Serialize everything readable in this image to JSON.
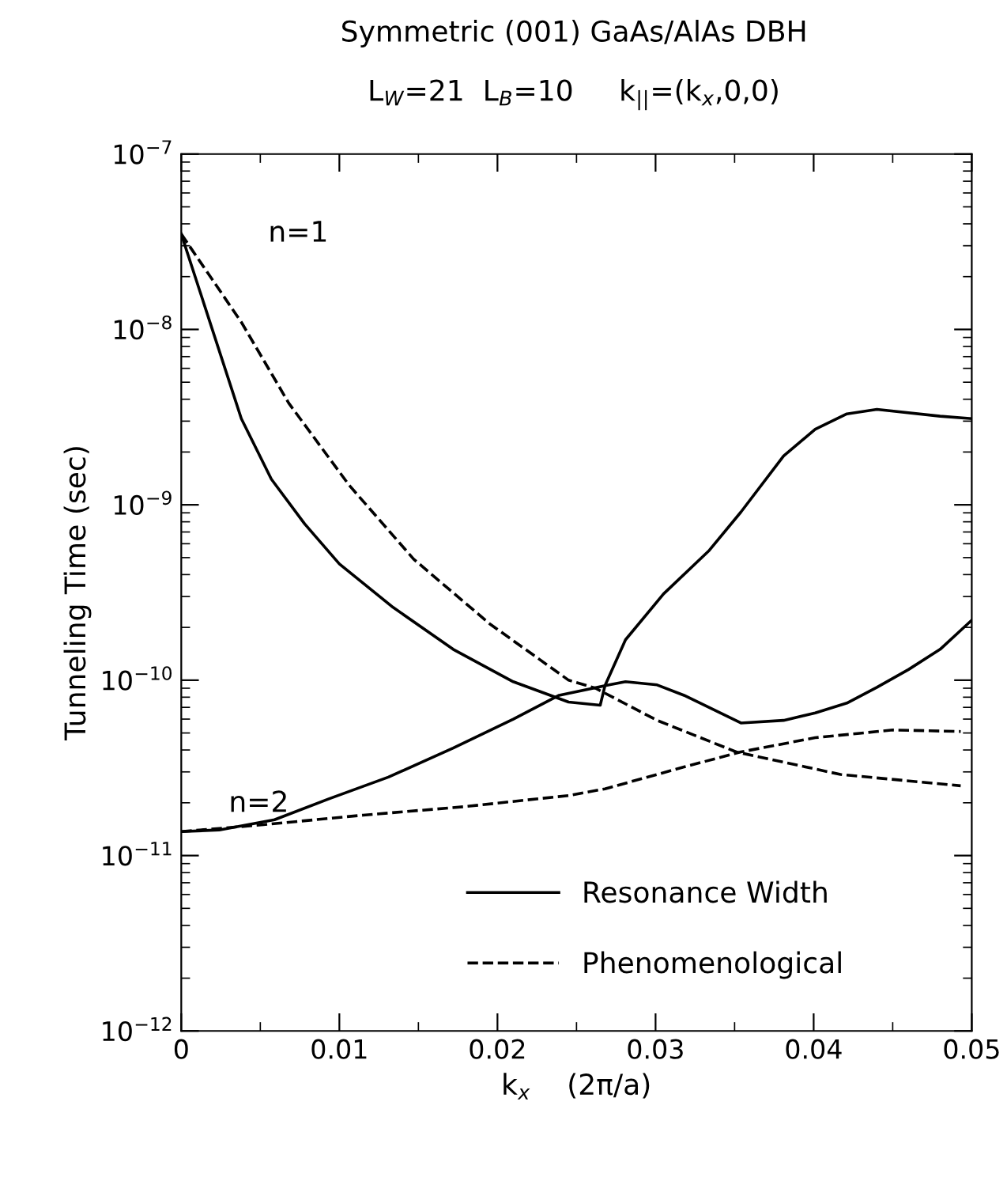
{
  "chart_data": {
    "type": "line",
    "title": "Symmetric (001) GaAs/AlAs DBH",
    "subtitle": "L$_{W}$=21  L$_{B}$=10     k$_{||}$=(k$_{x}$,0,0)",
    "xlabel": "k$_{x}$    (2π/a)",
    "ylabel": "Tunneling Time (sec)",
    "log": "y",
    "xlim": [
      0,
      0.05
    ],
    "ylim": [
      1e-12,
      1e-07
    ],
    "xticks": [
      0,
      0.01,
      0.02,
      0.03,
      0.04,
      0.05
    ],
    "yticks": [
      {
        "value": 1e-12,
        "label": "10$^{−12}$"
      },
      {
        "value": 1e-11,
        "label": "10$^{−11}$"
      },
      {
        "value": 1e-10,
        "label": "10$^{−10}$"
      },
      {
        "value": 1e-09,
        "label": "10$^{−9}$"
      },
      {
        "value": 1e-08,
        "label": "10$^{−8}$"
      },
      {
        "value": 1e-07,
        "label": "10$^{−7}$"
      }
    ],
    "grid": false,
    "legend": "bottom",
    "marker": "none",
    "annotations": [
      "n=1",
      "n=2"
    ],
    "series": [
      {
        "name": "Resonance Width",
        "color": "#000000",
        "line_style": "solid",
        "x": [
          0,
          0.0038,
          0.0057,
          0.0078,
          0.01,
          0.0134,
          0.0172,
          0.021,
          0.0245,
          0.0265,
          0.0268,
          0.0281,
          0.0305,
          0.0334,
          0.0354,
          0.0381,
          0.0401,
          0.0421,
          0.044,
          0.048,
          0.05
        ],
        "values": [
          3.5e-08,
          3.1e-09,
          1.4e-09,
          7.8e-10,
          4.6e-10,
          2.6e-10,
          1.5e-10,
          9.8e-11,
          7.5e-11,
          7.2e-11,
          9.3e-11,
          1.7e-10,
          3.1e-10,
          5.5e-10,
          9.1e-10,
          1.9e-09,
          2.7e-09,
          3.3e-09,
          3.5e-09,
          3.2e-09,
          3.1e-09
        ]
      },
      {
        "color": "#000000",
        "line_style": "solid",
        "x": [
          0,
          0.0024,
          0.0059,
          0.0093,
          0.0131,
          0.0172,
          0.021,
          0.0239,
          0.0268,
          0.0281,
          0.0301,
          0.0318,
          0.0354,
          0.0381,
          0.0401,
          0.0421,
          0.044,
          0.046,
          0.048,
          0.05
        ],
        "values": [
          1.37e-11,
          1.4e-11,
          1.6e-11,
          2.1e-11,
          2.8e-11,
          4.1e-11,
          6e-11,
          8.2e-11,
          9.3e-11,
          9.8e-11,
          9.4e-11,
          8.2e-11,
          5.7e-11,
          5.9e-11,
          6.5e-11,
          7.4e-11,
          9.1e-11,
          1.15e-10,
          1.5e-10,
          2.2e-10
        ]
      },
      {
        "name": "Phenomenological",
        "color": "#000000",
        "line_style": "dashed",
        "x": [
          0,
          0.0038,
          0.0068,
          0.0106,
          0.0147,
          0.0195,
          0.0245,
          0.0262,
          0.0301,
          0.0351,
          0.0417,
          0.0493
        ],
        "values": [
          3.5e-08,
          1.1e-08,
          3.8e-09,
          1.3e-09,
          4.9e-10,
          2.1e-10,
          1e-10,
          9e-11,
          5.9e-11,
          3.9e-11,
          2.9e-11,
          2.5e-11
        ]
      },
      {
        "color": "#000000",
        "line_style": "dashed",
        "x": [
          0,
          0.0052,
          0.0115,
          0.0179,
          0.0245,
          0.0268,
          0.0318,
          0.0354,
          0.0401,
          0.045,
          0.0493
        ],
        "values": [
          1.37e-11,
          1.5e-11,
          1.7e-11,
          1.9e-11,
          2.2e-11,
          2.4e-11,
          3.2e-11,
          3.9e-11,
          4.7e-11,
          5.2e-11,
          5.1e-11
        ]
      }
    ]
  }
}
